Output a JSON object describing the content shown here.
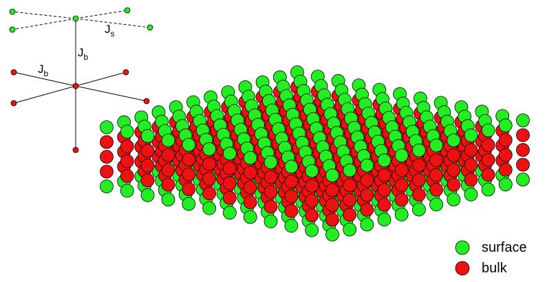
{
  "couplings": [
    {
      "symbol": "J",
      "subscript": "s"
    },
    {
      "symbol": "J",
      "subscript": "b"
    },
    {
      "symbol": "J",
      "subscript": "b"
    }
  ],
  "legend": [
    {
      "label": "surface",
      "color": "#22ee22"
    },
    {
      "label": "bulk",
      "color": "#ee1111"
    }
  ]
}
